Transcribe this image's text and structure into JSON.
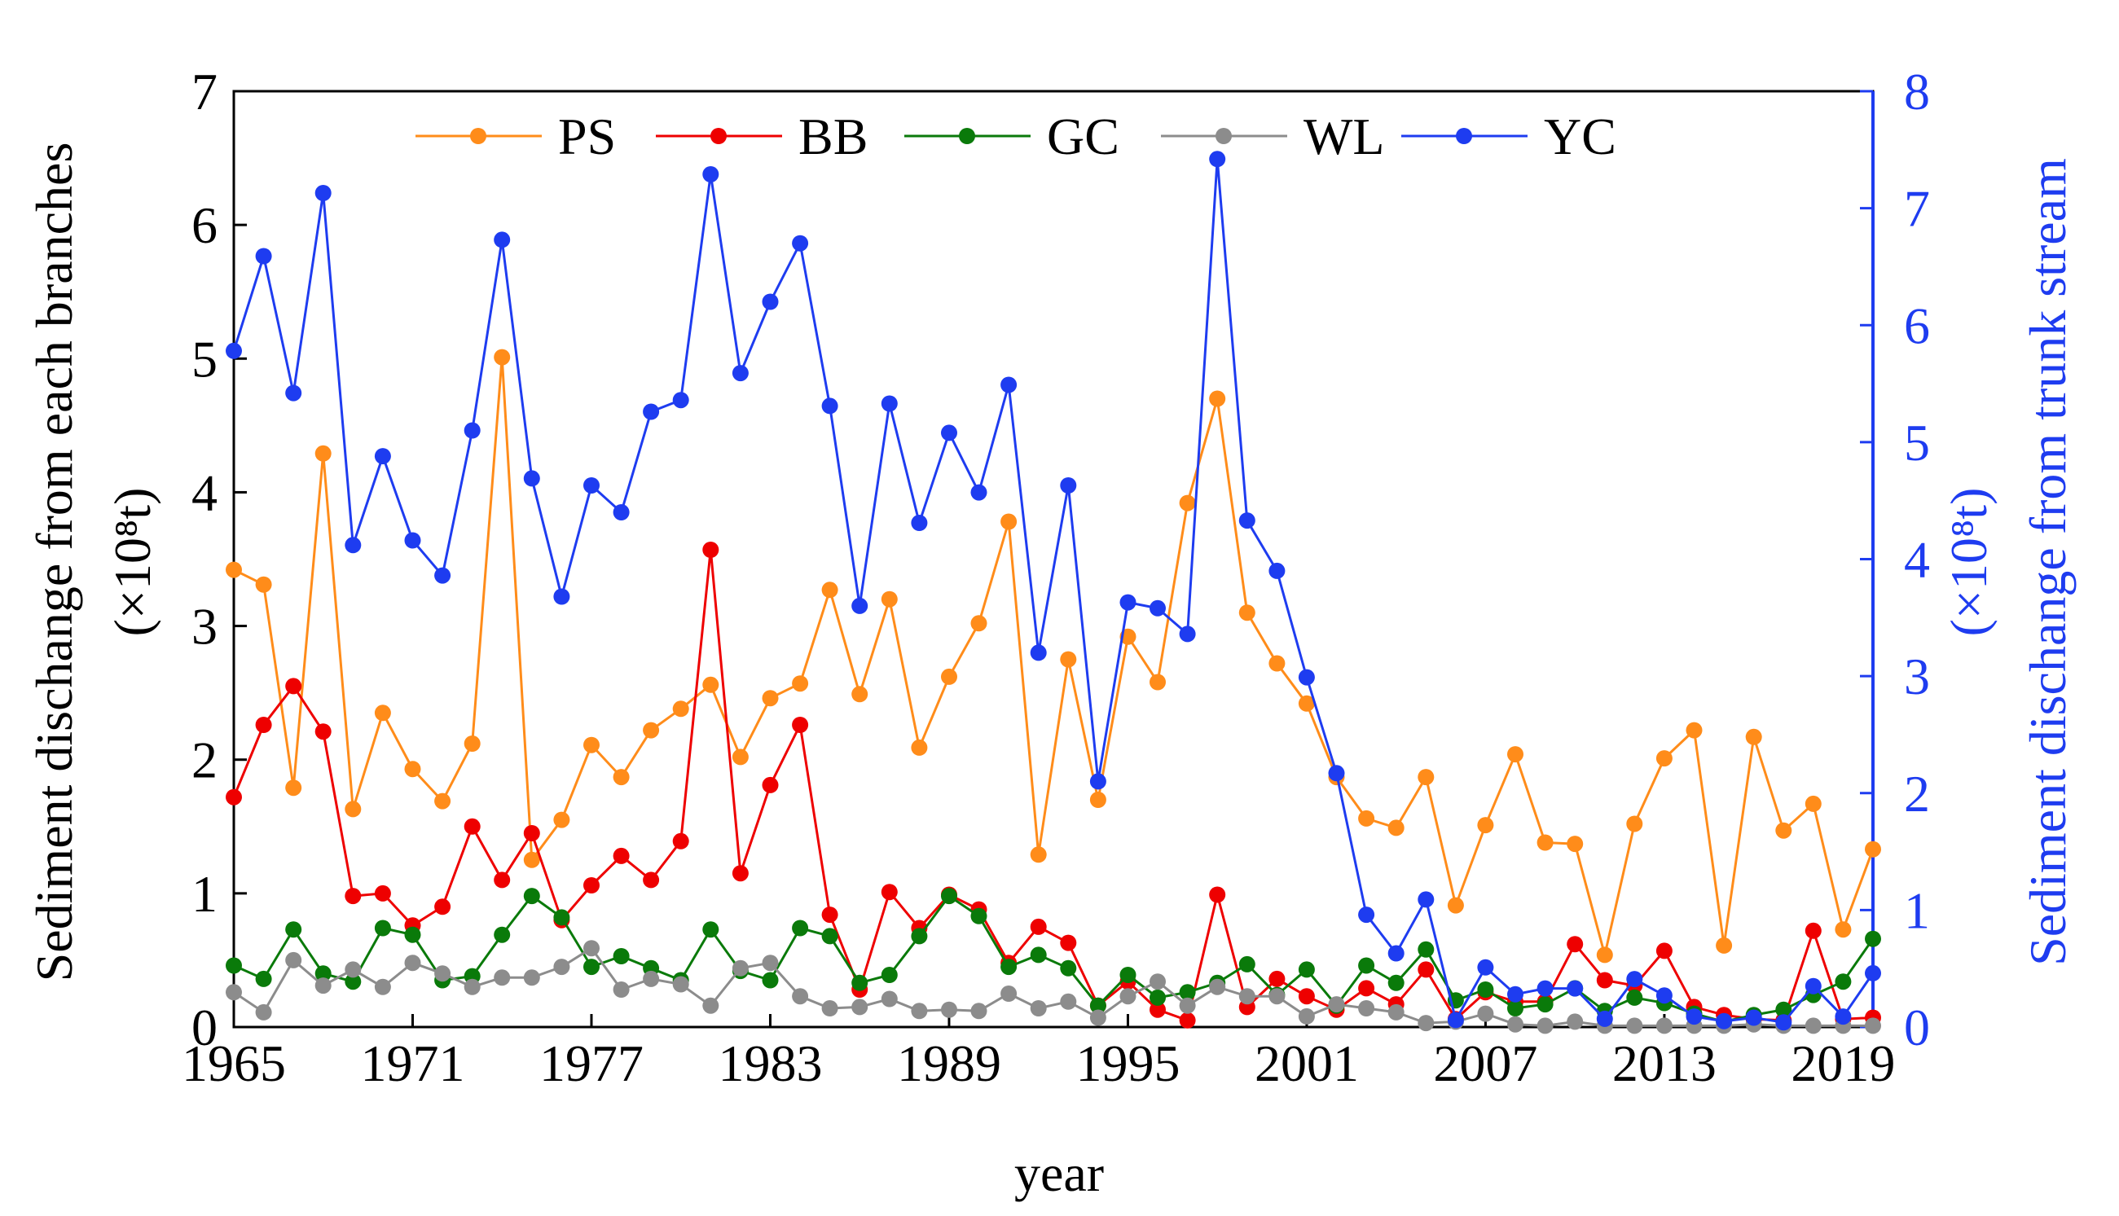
{
  "chart_data": {
    "type": "line",
    "xlabel": "year",
    "ylabel_left": "Sediment dischange from each branches",
    "ylabel_left_unit": "(×10⁸t)",
    "ylabel_right": "Sediment dischange from trunk stream",
    "ylabel_right_unit": "(×10⁸t)",
    "xlim": [
      1965,
      2020
    ],
    "ylim_left": [
      0,
      7
    ],
    "ylim_right": [
      0,
      8
    ],
    "x_ticks": [
      "1965",
      "1971",
      "1977",
      "1983",
      "1989",
      "1995",
      "2001",
      "2007",
      "2013",
      "2019"
    ],
    "y_ticks_left": [
      "0",
      "1",
      "2",
      "3",
      "4",
      "5",
      "6",
      "7"
    ],
    "y_ticks_right": [
      "0",
      "1",
      "2",
      "3",
      "4",
      "5",
      "6",
      "7",
      "8"
    ],
    "legend_position": "top",
    "grid": false,
    "x": [
      1965,
      1966,
      1967,
      1968,
      1969,
      1970,
      1971,
      1972,
      1973,
      1974,
      1975,
      1976,
      1977,
      1978,
      1979,
      1980,
      1981,
      1982,
      1983,
      1984,
      1985,
      1986,
      1987,
      1988,
      1989,
      1990,
      1991,
      1992,
      1993,
      1994,
      1995,
      1996,
      1997,
      1998,
      1999,
      2000,
      2001,
      2002,
      2003,
      2004,
      2005,
      2006,
      2007,
      2008,
      2009,
      2010,
      2011,
      2012,
      2013,
      2014,
      2015,
      2016,
      2017,
      2018,
      2019,
      2020
    ],
    "series": [
      {
        "name": "PS",
        "axis": "left",
        "color": "#FF8C1A",
        "values": [
          3.42,
          3.31,
          1.79,
          4.29,
          1.63,
          2.35,
          1.93,
          1.69,
          2.12,
          5.01,
          1.25,
          1.55,
          2.11,
          1.87,
          2.22,
          2.38,
          2.56,
          2.02,
          2.46,
          2.57,
          3.27,
          2.49,
          3.2,
          2.09,
          2.62,
          3.02,
          3.78,
          1.29,
          2.75,
          1.7,
          2.92,
          2.58,
          3.92,
          4.7,
          3.1,
          2.72,
          2.42,
          1.87,
          1.56,
          1.49,
          1.87,
          0.91,
          1.51,
          2.04,
          1.38,
          1.37,
          0.54,
          1.52,
          2.01,
          2.22,
          0.61,
          2.17,
          1.47,
          1.67,
          0.73,
          1.33
        ]
      },
      {
        "name": "BB",
        "axis": "left",
        "color": "#EE0000",
        "values": [
          1.72,
          2.26,
          2.55,
          2.21,
          0.98,
          1.0,
          0.76,
          0.9,
          1.5,
          1.1,
          1.45,
          0.8,
          1.06,
          1.28,
          1.1,
          1.39,
          3.57,
          1.15,
          1.81,
          2.26,
          0.84,
          0.28,
          1.01,
          0.74,
          0.99,
          0.88,
          0.48,
          0.75,
          0.63,
          0.16,
          0.34,
          0.13,
          0.05,
          0.99,
          0.15,
          0.36,
          0.23,
          0.13,
          0.29,
          0.17,
          0.43,
          0.06,
          0.26,
          0.19,
          0.19,
          0.62,
          0.35,
          0.31,
          0.57,
          0.15,
          0.09,
          0.06,
          0.05,
          0.72,
          0.06,
          0.07
        ]
      },
      {
        "name": "GC",
        "axis": "left",
        "color": "#0A7A0A",
        "values": [
          0.46,
          0.36,
          0.73,
          0.4,
          0.34,
          0.74,
          0.69,
          0.35,
          0.38,
          0.69,
          0.98,
          0.82,
          0.45,
          0.53,
          0.44,
          0.35,
          0.73,
          0.42,
          0.35,
          0.74,
          0.68,
          0.33,
          0.39,
          0.68,
          0.98,
          0.83,
          0.45,
          0.54,
          0.44,
          0.16,
          0.39,
          0.22,
          0.26,
          0.33,
          0.47,
          0.24,
          0.43,
          0.16,
          0.46,
          0.33,
          0.58,
          0.2,
          0.28,
          0.14,
          0.17,
          0.29,
          0.12,
          0.22,
          0.18,
          0.1,
          0.04,
          0.09,
          0.13,
          0.24,
          0.34,
          0.66
        ]
      },
      {
        "name": "WL",
        "axis": "left",
        "color": "#8C8C8C",
        "values": [
          0.26,
          0.11,
          0.5,
          0.31,
          0.43,
          0.3,
          0.48,
          0.4,
          0.3,
          0.37,
          0.37,
          0.45,
          0.59,
          0.28,
          0.36,
          0.32,
          0.16,
          0.44,
          0.48,
          0.23,
          0.14,
          0.15,
          0.21,
          0.12,
          0.13,
          0.12,
          0.25,
          0.14,
          0.19,
          0.07,
          0.23,
          0.34,
          0.16,
          0.3,
          0.23,
          0.23,
          0.08,
          0.17,
          0.14,
          0.11,
          0.03,
          0.04,
          0.1,
          0.02,
          0.01,
          0.04,
          0.01,
          0.01,
          0.01,
          0.01,
          0.01,
          0.02,
          0.01,
          0.01,
          0.01,
          0.01
        ]
      },
      {
        "name": "YC",
        "axis": "right",
        "color": "#1E3CF0",
        "values": [
          5.78,
          6.59,
          5.42,
          7.13,
          4.12,
          4.88,
          4.16,
          3.86,
          5.1,
          6.73,
          4.69,
          3.68,
          4.63,
          4.4,
          5.26,
          5.36,
          7.29,
          5.59,
          6.2,
          6.7,
          5.31,
          3.6,
          5.33,
          4.31,
          5.08,
          4.57,
          5.49,
          3.2,
          4.63,
          2.1,
          3.63,
          3.58,
          3.36,
          7.42,
          4.33,
          3.9,
          2.99,
          2.17,
          0.96,
          0.63,
          1.09,
          0.06,
          0.51,
          0.28,
          0.33,
          0.33,
          0.07,
          0.41,
          0.27,
          0.09,
          0.05,
          0.08,
          0.04,
          0.35,
          0.09,
          0.46
        ]
      }
    ]
  }
}
